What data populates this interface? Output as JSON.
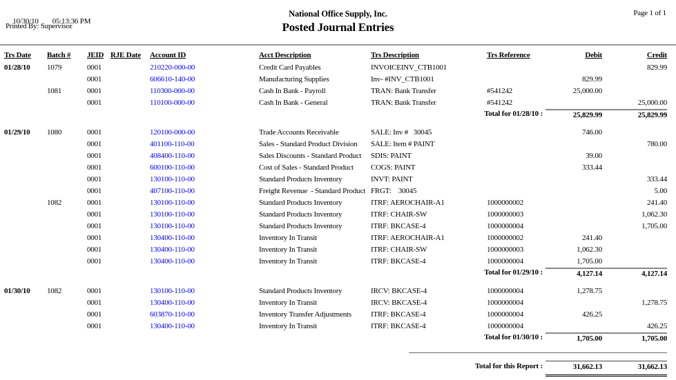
{
  "page_header": {
    "print_date": "10/30/10",
    "print_time": "05:13:36 PM",
    "printed_by": "Printed By: Supervisor",
    "company_name": "National Office Supply, Inc.",
    "report_title": "Posted Journal Entries",
    "page_indicator": "Page 1 of 1"
  },
  "colors": {
    "account_link_blue": "#0000FF",
    "header_rule_gray": "#9A9A9A",
    "subtotal_line_gray": "#888888",
    "text_black": "#000000"
  },
  "columns": [
    {
      "key": "date",
      "label": "Trs Date"
    },
    {
      "key": "batch",
      "label": "Batch #"
    },
    {
      "key": "jeid",
      "label": "JEID"
    },
    {
      "key": "rje",
      "label": "RJE Date"
    },
    {
      "key": "account",
      "label": "Account ID"
    },
    {
      "key": "acct_desc",
      "label": "Acct Description"
    },
    {
      "key": "trs_desc",
      "label": "Trs Description"
    },
    {
      "key": "ref",
      "label": "Trs Reference"
    },
    {
      "key": "debit",
      "label": "Debit"
    },
    {
      "key": "credit",
      "label": "Credit"
    }
  ],
  "sections": [
    {
      "date": "01/28/10",
      "rows": [
        {
          "date": "01/28/10",
          "batch": "1079",
          "jeid": "0001",
          "rje": "",
          "account": "210220-000-00",
          "acct_desc": "Credit Card Payables",
          "trs_desc": "INVOICEINV_CTB1001",
          "ref": "",
          "debit": "",
          "credit": "829.99"
        },
        {
          "date": "",
          "batch": "",
          "jeid": "0001",
          "rje": "",
          "account": "606610-140-00",
          "acct_desc": "Manufacturing Supplies",
          "trs_desc": "Inv- #INV_CTB1001",
          "ref": "",
          "debit": "829.99",
          "credit": ""
        },
        {
          "date": "",
          "batch": "1081",
          "jeid": "0001",
          "rje": "",
          "account": "110300-000-00",
          "acct_desc": "Cash In Bank - Payroll",
          "trs_desc": "TRAN: Bank Transfer",
          "ref": "#541242",
          "debit": "25,000.00",
          "credit": ""
        },
        {
          "date": "",
          "batch": "",
          "jeid": "0001",
          "rje": "",
          "account": "110100-000-00",
          "acct_desc": "Cash In Bank - General",
          "trs_desc": "TRAN: Bank Transfer",
          "ref": "#541242",
          "debit": "",
          "credit": "25,000.00"
        }
      ],
      "total": {
        "label": "Total for 01/28/10 :",
        "debit": "25,829.99",
        "credit": "25,829.99"
      }
    },
    {
      "date": "01/29/10",
      "rows": [
        {
          "date": "01/29/10",
          "batch": "1080",
          "jeid": "0001",
          "rje": "",
          "account": "120100-000-00",
          "acct_desc": "Trade Accounts Receivable",
          "trs_desc": "SALE: Inv #   30045",
          "ref": "",
          "debit": "746.00",
          "credit": ""
        },
        {
          "date": "",
          "batch": "",
          "jeid": "0001",
          "rje": "",
          "account": "401100-110-00",
          "acct_desc": "Sales - Standard Product Division",
          "trs_desc": "SALE: Item # PAINT",
          "ref": "",
          "debit": "",
          "credit": "780.00"
        },
        {
          "date": "",
          "batch": "",
          "jeid": "0001",
          "rje": "",
          "account": "408400-110-00",
          "acct_desc": "Sales Discounts - Standard Product",
          "trs_desc": "SDIS: PAINT",
          "ref": "",
          "debit": "39.00",
          "credit": ""
        },
        {
          "date": "",
          "batch": "",
          "jeid": "0001",
          "rje": "",
          "account": "600100-110-00",
          "acct_desc": "Cost of Sales - Standard Product",
          "trs_desc": "COGS: PAINT",
          "ref": "",
          "debit": "333.44",
          "credit": ""
        },
        {
          "date": "",
          "batch": "",
          "jeid": "0001",
          "rje": "",
          "account": "130100-110-00",
          "acct_desc": "Standard Products Inventory",
          "trs_desc": "INVT: PAINT",
          "ref": "",
          "debit": "",
          "credit": "333.44"
        },
        {
          "date": "",
          "batch": "",
          "jeid": "0001",
          "rje": "",
          "account": "407100-110-00",
          "acct_desc": "Freight Revenue  - Standard Product",
          "trs_desc": "FRGT:    30045",
          "ref": "",
          "debit": "",
          "credit": "5.00"
        },
        {
          "date": "",
          "batch": "1082",
          "jeid": "0001",
          "rje": "",
          "account": "130100-110-00",
          "acct_desc": "Standard Products Inventory",
          "trs_desc": "ITRF: AEROCHAIR-A1",
          "ref": "1000000002",
          "debit": "",
          "credit": "241.40"
        },
        {
          "date": "",
          "batch": "",
          "jeid": "0001",
          "rje": "",
          "account": "130100-110-00",
          "acct_desc": "Standard Products Inventory",
          "trs_desc": "ITRF: CHAIR-SW",
          "ref": "1000000003",
          "debit": "",
          "credit": "1,062.30"
        },
        {
          "date": "",
          "batch": "",
          "jeid": "0001",
          "rje": "",
          "account": "130100-110-00",
          "acct_desc": "Standard Products Inventory",
          "trs_desc": "ITRF: BKCASE-4",
          "ref": "1000000004",
          "debit": "",
          "credit": "1,705.00"
        },
        {
          "date": "",
          "batch": "",
          "jeid": "0001",
          "rje": "",
          "account": "130400-110-00",
          "acct_desc": "Inventory In Transit",
          "trs_desc": "ITRF: AEROCHAIR-A1",
          "ref": "1000000002",
          "debit": "241.40",
          "credit": ""
        },
        {
          "date": "",
          "batch": "",
          "jeid": "0001",
          "rje": "",
          "account": "130400-110-00",
          "acct_desc": "Inventory In Transit",
          "trs_desc": "ITRF: CHAIR-SW",
          "ref": "1000000003",
          "debit": "1,062.30",
          "credit": ""
        },
        {
          "date": "",
          "batch": "",
          "jeid": "0001",
          "rje": "",
          "account": "130400-110-00",
          "acct_desc": "Inventory In Transit",
          "trs_desc": "ITRF: BKCASE-4",
          "ref": "1000000004",
          "debit": "1,705.00",
          "credit": ""
        }
      ],
      "total": {
        "label": "Total for 01/29/10 :",
        "debit": "4,127.14",
        "credit": "4,127.14"
      }
    },
    {
      "date": "01/30/10",
      "rows": [
        {
          "date": "01/30/10",
          "batch": "1082",
          "jeid": "0001",
          "rje": "",
          "account": "130100-110-00",
          "acct_desc": "Standard Products Inventory",
          "trs_desc": "IRCV: BKCASE-4",
          "ref": "1000000004",
          "debit": "1,278.75",
          "credit": ""
        },
        {
          "date": "",
          "batch": "",
          "jeid": "0001",
          "rje": "",
          "account": "130400-110-00",
          "acct_desc": "Inventory In Transit",
          "trs_desc": "IRCV: BKCASE-4",
          "ref": "1000000004",
          "debit": "",
          "credit": "1,278.75"
        },
        {
          "date": "",
          "batch": "",
          "jeid": "0001",
          "rje": "",
          "account": "603870-110-00",
          "acct_desc": "Inventory Transfer Adjustments",
          "trs_desc": "ITRF: BKCASE-4",
          "ref": "1000000004",
          "debit": "426.25",
          "credit": ""
        },
        {
          "date": "",
          "batch": "",
          "jeid": "0001",
          "rje": "",
          "account": "130400-110-00",
          "acct_desc": "Inventory In Transit",
          "trs_desc": "ITRF: BKCASE-4",
          "ref": "1000000004",
          "debit": "",
          "credit": "426.25"
        }
      ],
      "total": {
        "label": "Total for 01/30/10 :",
        "debit": "1,705.00",
        "credit": "1,705.00"
      }
    }
  ],
  "report_total": {
    "label": "Total for this Report :",
    "debit": "31,662.13",
    "credit": "31,662.13"
  }
}
